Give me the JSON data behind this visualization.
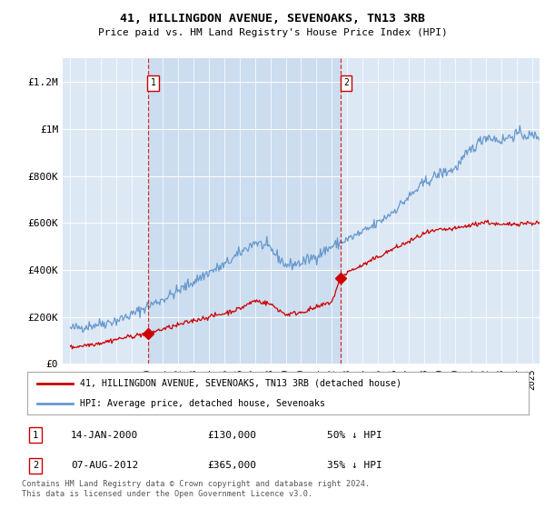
{
  "title": "41, HILLINGDON AVENUE, SEVENOAKS, TN13 3RB",
  "subtitle": "Price paid vs. HM Land Registry's House Price Index (HPI)",
  "ylim": [
    0,
    1300000
  ],
  "yticks": [
    0,
    200000,
    400000,
    600000,
    800000,
    1000000,
    1200000
  ],
  "ytick_labels": [
    "£0",
    "£200K",
    "£400K",
    "£600K",
    "£800K",
    "£1M",
    "£1.2M"
  ],
  "plot_bg_color": "#dde8f5",
  "shade_color": "#ccddf0",
  "legend_entries": [
    "41, HILLINGDON AVENUE, SEVENOAKS, TN13 3RB (detached house)",
    "HPI: Average price, detached house, Sevenoaks"
  ],
  "purchase1": {
    "date_label": "14-JAN-2000",
    "price_label": "£130,000",
    "pct_label": "50% ↓ HPI",
    "x_year": 2000.04,
    "y": 130000,
    "marker_num": "1"
  },
  "purchase2": {
    "date_label": "07-AUG-2012",
    "price_label": "£365,000",
    "pct_label": "35% ↓ HPI",
    "x_year": 2012.58,
    "y": 365000,
    "marker_num": "2"
  },
  "footer": "Contains HM Land Registry data © Crown copyright and database right 2024.\nThis data is licensed under the Open Government Licence v3.0.",
  "hpi_color": "#6699cc",
  "price_color": "#cc0000",
  "vline_color": "#cc0000",
  "xmin": 1995,
  "xmax": 2025.5
}
